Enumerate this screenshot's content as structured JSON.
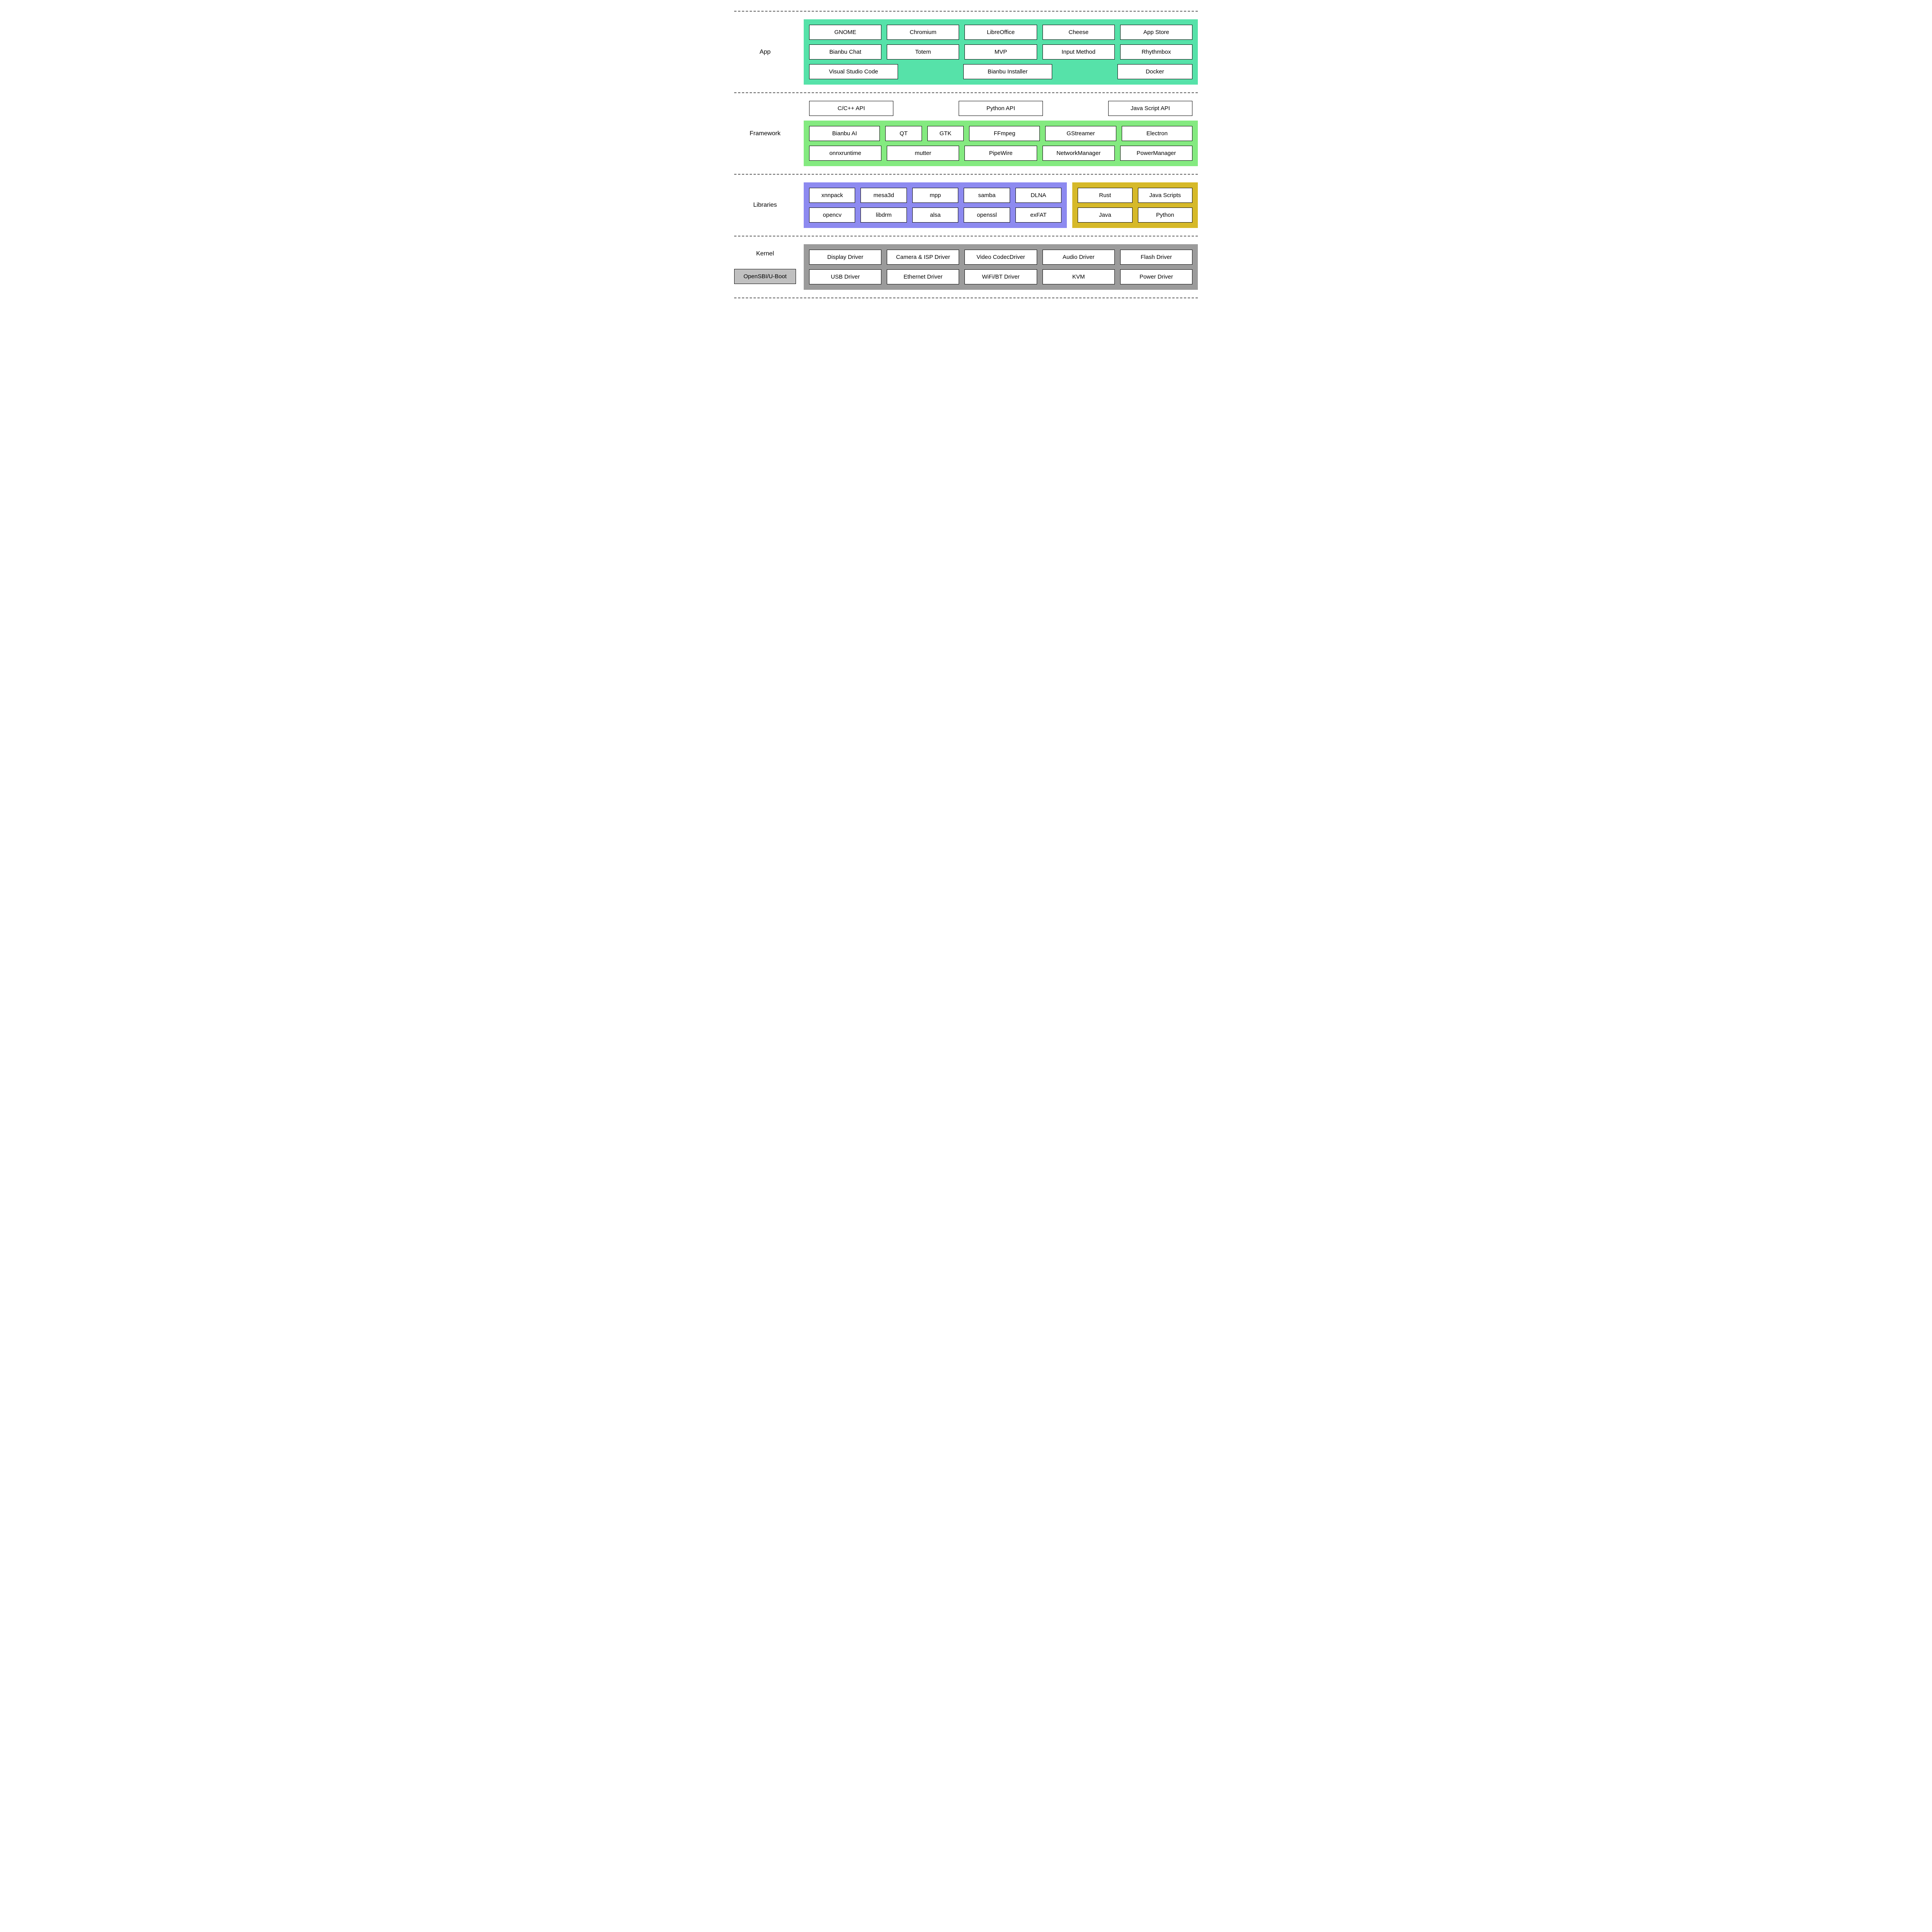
{
  "colors": {
    "dash": "#5b5b5b",
    "app_bg": "#56e2a9",
    "framework_bg": "#84ea80",
    "lib_left_bg": "#8d8af0",
    "lib_right_bg": "#d6b929",
    "kernel_bg": "#9b9b9b",
    "uboot_bg": "#c0c0c0",
    "box_bg": "#ffffff",
    "box_border": "#000000",
    "text": "#000000"
  },
  "layers": {
    "app": {
      "label": "App",
      "rows": [
        [
          "GNOME",
          "Chromium",
          "LibreOffice",
          "Cheese",
          "App Store"
        ],
        [
          "Bianbu Chat",
          "Totem",
          "MVP",
          "Input Method",
          "Rhythmbox"
        ],
        [
          "Visual Studio Code",
          "",
          "Bianbu Installer",
          "",
          "Docker"
        ]
      ]
    },
    "framework": {
      "label": "Framework",
      "api_row": [
        "C/C++ API",
        "Python API",
        "Java Script API"
      ],
      "rows": [
        [
          "Bianbu AI",
          "QT",
          "GTK",
          "FFmpeg",
          "GStreamer",
          "Electron"
        ],
        [
          "onnxruntime",
          "mutter",
          "PipeWire",
          "NetworkManager",
          "PowerManager"
        ]
      ]
    },
    "libraries": {
      "label": "Libraries",
      "left_rows": [
        [
          "xnnpack",
          "mesa3d",
          "mpp",
          "samba",
          "DLNA"
        ],
        [
          "opencv",
          "libdrm",
          "alsa",
          "openssl",
          "exFAT"
        ]
      ],
      "right_rows": [
        [
          "Rust",
          "Java Scripts"
        ],
        [
          "Java",
          "Python"
        ]
      ]
    },
    "kernel": {
      "label": "Kernel",
      "uboot": "OpenSBI/U-Boot",
      "rows": [
        [
          "Display Driver",
          "Camera & ISP Driver",
          "Video CodecDriver",
          "Audio Driver",
          "Flash Driver"
        ],
        [
          "USB Driver",
          "Ethernet Driver",
          "WiFi/BT Driver",
          "KVM",
          "Power Driver"
        ]
      ]
    }
  }
}
